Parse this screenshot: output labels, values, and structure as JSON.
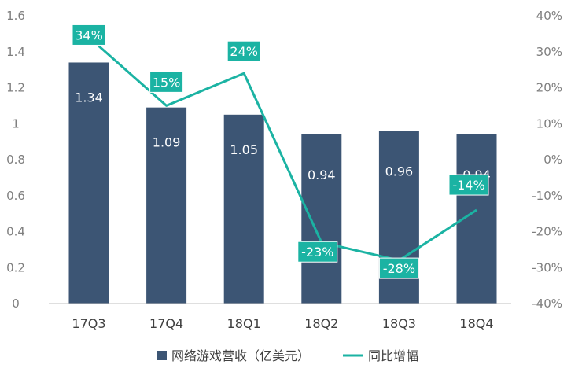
{
  "chart_data": {
    "type": "bar",
    "categories": [
      "17Q3",
      "17Q4",
      "18Q1",
      "18Q2",
      "18Q3",
      "18Q4"
    ],
    "series": [
      {
        "name": "网络游戏营收（亿美元）",
        "type": "bar",
        "axis": "left",
        "values": [
          1.34,
          1.09,
          1.05,
          0.94,
          0.96,
          0.94
        ],
        "labels": [
          "1.34",
          "1.09",
          "1.05",
          "0.94",
          "0.96",
          "0.94"
        ],
        "color": "#3c5574"
      },
      {
        "name": "同比增幅",
        "type": "line",
        "axis": "right",
        "values": [
          34,
          15,
          24,
          -23,
          -28,
          -14
        ],
        "labels": [
          "34%",
          "15%",
          "24%",
          "-23%",
          "-28%",
          "-14%"
        ],
        "color": "#1bb3a3"
      }
    ],
    "y_left": {
      "min": 0,
      "max": 1.6,
      "ticks": [
        "0",
        "0.2",
        "0.4",
        "0.6",
        "0.8",
        "1",
        "1.2",
        "1.4",
        "1.6"
      ]
    },
    "y_right": {
      "min": -40,
      "max": 40,
      "ticks": [
        "-40%",
        "-30%",
        "-20%",
        "-10%",
        "0%",
        "10%",
        "20%",
        "30%",
        "40%"
      ]
    },
    "grid": false,
    "legend_position": "bottom"
  }
}
